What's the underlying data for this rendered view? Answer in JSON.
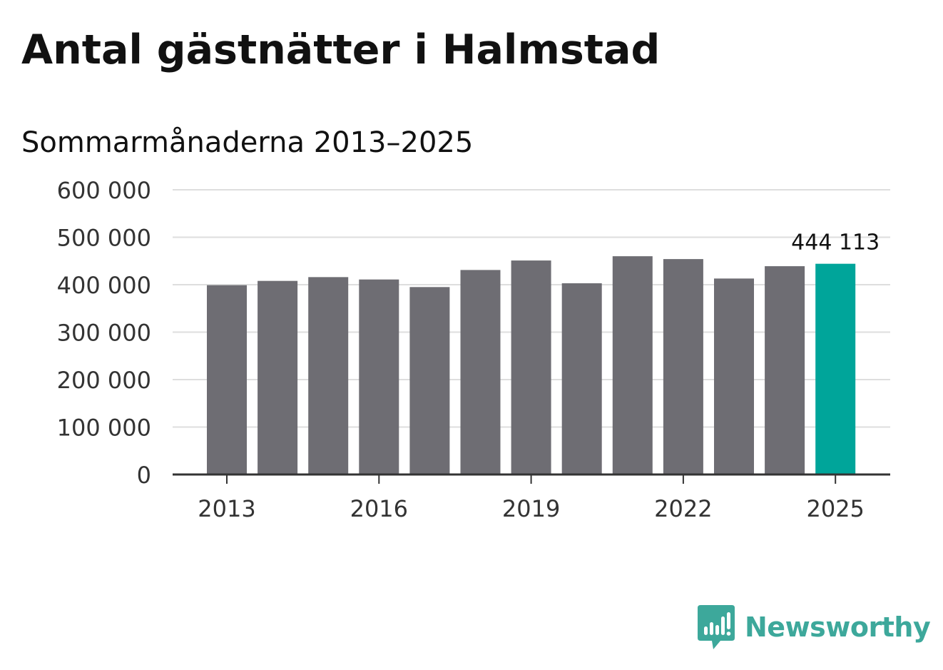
{
  "chart_data": {
    "type": "bar",
    "title": "Antal gästnätter i Halmstad",
    "subtitle": "Sommarmånaderna 2013–2025",
    "categories": [
      "2013",
      "2014",
      "2015",
      "2016",
      "2017",
      "2018",
      "2019",
      "2020",
      "2021",
      "2022",
      "2023",
      "2024",
      "2025"
    ],
    "values": [
      399000,
      408000,
      416000,
      411000,
      395000,
      431000,
      451000,
      403000,
      460000,
      454000,
      413000,
      439000,
      444113
    ],
    "x_tick_labels": [
      "2013",
      "2016",
      "2019",
      "2022",
      "2025"
    ],
    "y_ticks": [
      0,
      100000,
      200000,
      300000,
      400000,
      500000,
      600000
    ],
    "y_tick_labels": [
      "0",
      "100 000",
      "200 000",
      "300 000",
      "400 000",
      "500 000",
      "600 000"
    ],
    "ylim": [
      0,
      600000
    ],
    "xlabel": "",
    "ylabel": "",
    "grid": true,
    "bar_color": "#6e6d73",
    "highlight_color": "#00a59a",
    "highlight_index": 12,
    "data_labels": [
      {
        "index": 12,
        "text": "444 113"
      }
    ]
  },
  "brand": {
    "name": "Newsworthy",
    "icon": "newsworthy-logo-icon",
    "color": "#3da89b"
  }
}
